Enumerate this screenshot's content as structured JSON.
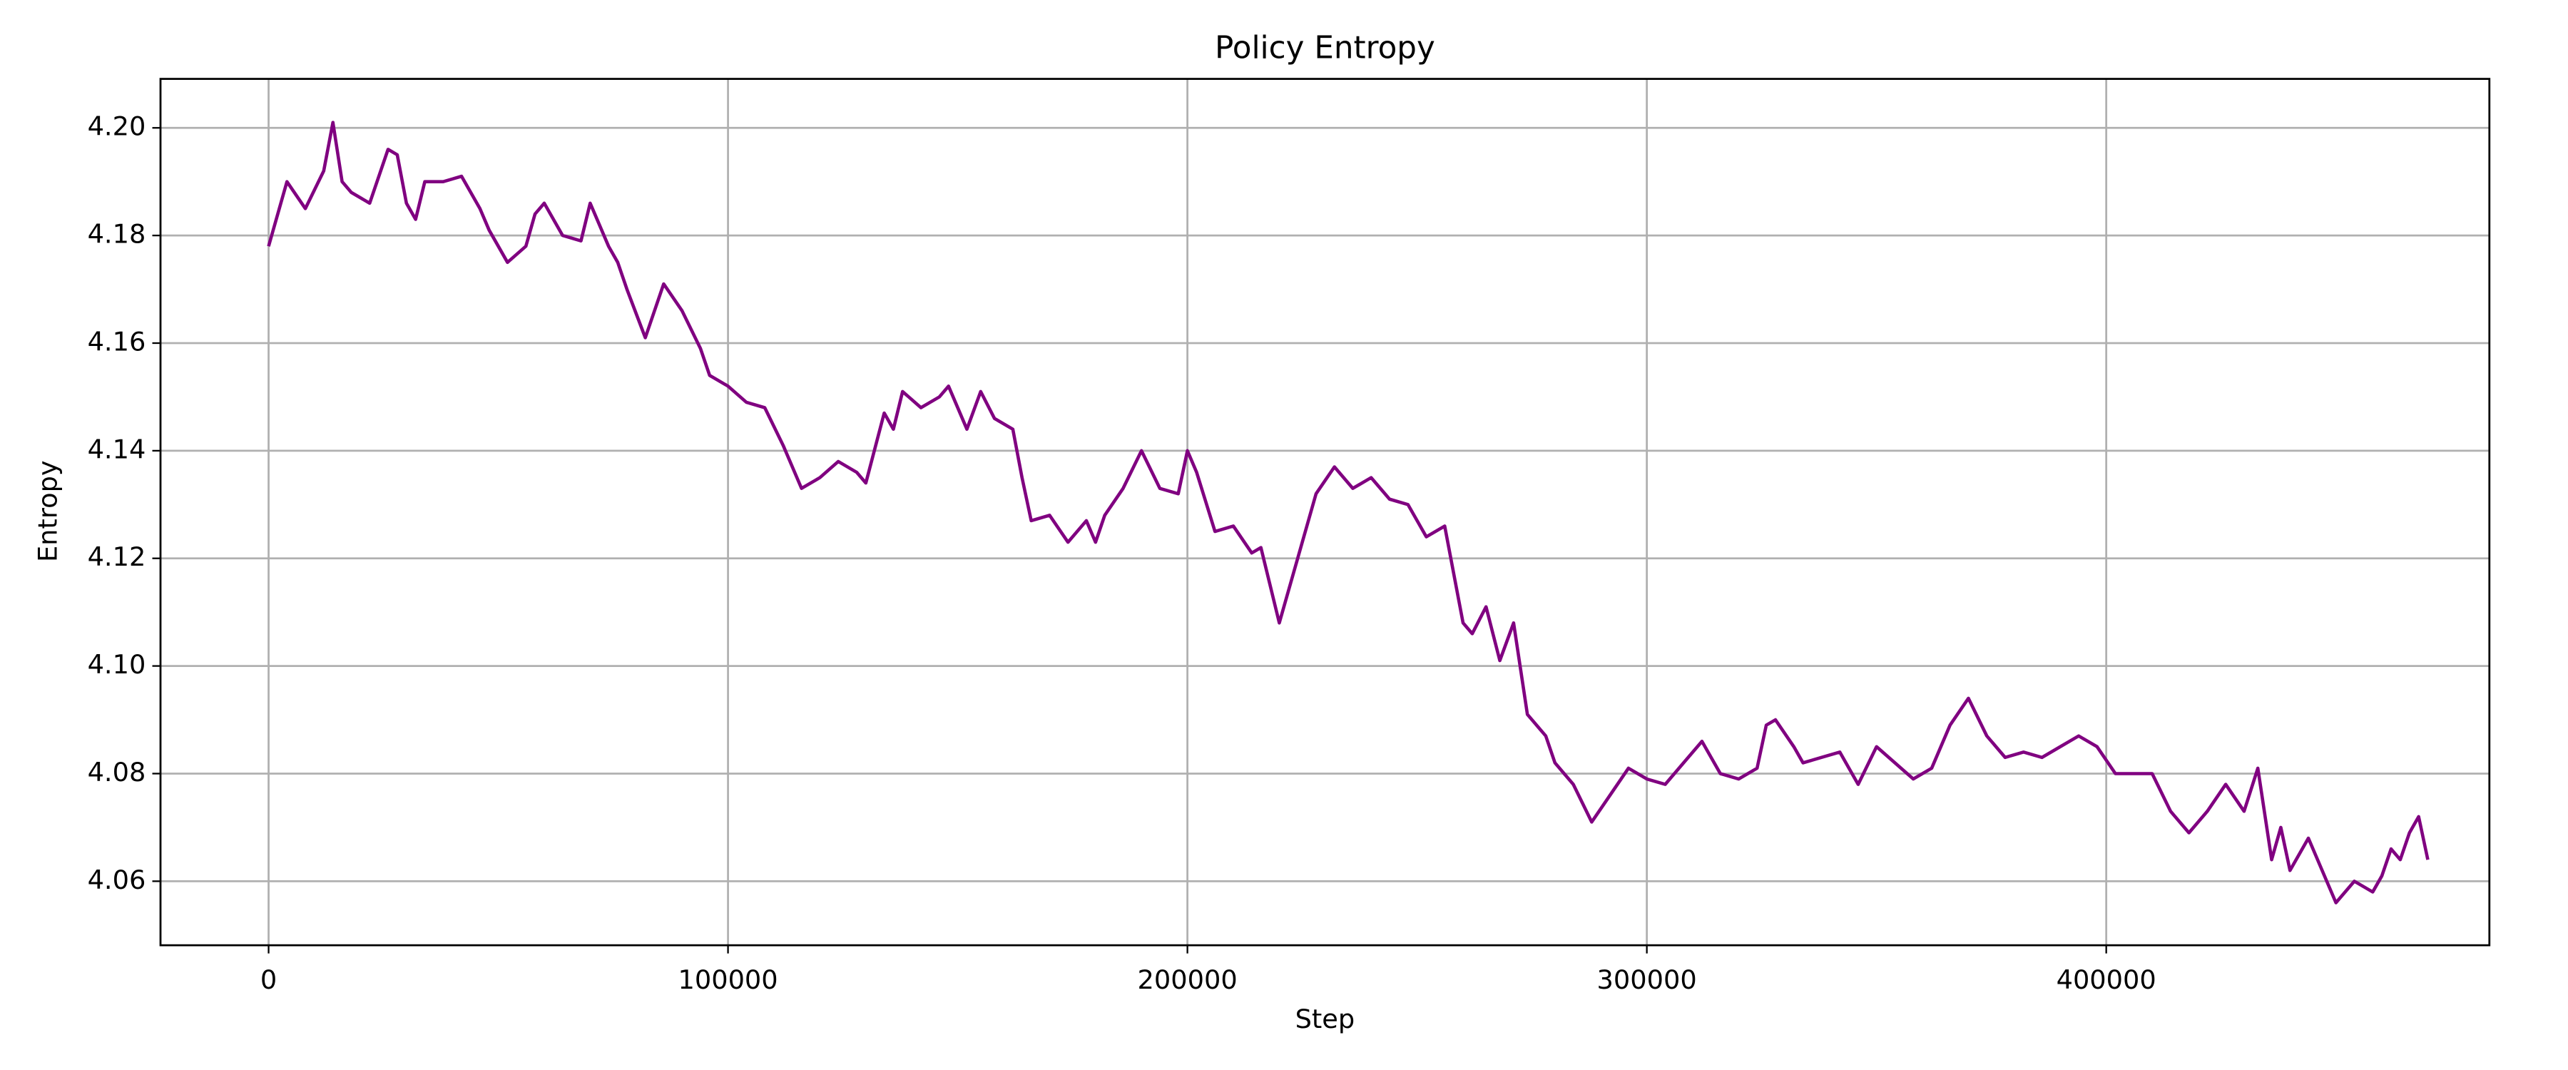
{
  "chart_data": {
    "type": "line",
    "title": "Policy Entropy",
    "x_label": "Step",
    "y_label": "Entropy",
    "x": [
      0,
      4000,
      8000,
      12000,
      14000,
      16000,
      18000,
      22000,
      26000,
      28000,
      30000,
      32000,
      34000,
      38000,
      42000,
      46000,
      48000,
      52000,
      56000,
      58000,
      60000,
      64000,
      68000,
      70000,
      74000,
      76000,
      78000,
      82000,
      86000,
      90000,
      94000,
      96000,
      100000,
      104000,
      108000,
      112000,
      116000,
      120000,
      124000,
      128000,
      130000,
      134000,
      136000,
      138000,
      142000,
      146000,
      148000,
      152000,
      155000,
      158000,
      162000,
      164000,
      166000,
      170000,
      174000,
      178000,
      180000,
      182000,
      186000,
      190000,
      194000,
      198000,
      200000,
      202000,
      206000,
      210000,
      214000,
      216000,
      220000,
      224000,
      228000,
      232000,
      236000,
      240000,
      244000,
      248000,
      252000,
      256000,
      260000,
      262000,
      265000,
      268000,
      271000,
      274000,
      276000,
      278000,
      280000,
      284000,
      288000,
      292000,
      296000,
      300000,
      304000,
      308000,
      312000,
      316000,
      320000,
      324000,
      326000,
      328000,
      332000,
      334000,
      338000,
      342000,
      346000,
      350000,
      354000,
      358000,
      362000,
      366000,
      370000,
      374000,
      378000,
      382000,
      386000,
      390000,
      394000,
      398000,
      402000,
      406000,
      410000,
      414000,
      418000,
      422000,
      426000,
      430000,
      433000,
      436000,
      438000,
      440000,
      444000,
      448000,
      450000,
      454000,
      458000,
      460000,
      462000,
      464000,
      466000,
      468000,
      470000
    ],
    "series": [
      {
        "name": "Entropy",
        "color": "#800080",
        "values": [
          4.178,
          4.19,
          4.185,
          4.192,
          4.201,
          4.19,
          4.188,
          4.186,
          4.196,
          4.195,
          4.186,
          4.183,
          4.19,
          4.19,
          4.191,
          4.185,
          4.181,
          4.175,
          4.178,
          4.184,
          4.186,
          4.18,
          4.179,
          4.186,
          4.178,
          4.175,
          4.17,
          4.161,
          4.171,
          4.166,
          4.159,
          4.154,
          4.152,
          4.149,
          4.148,
          4.141,
          4.133,
          4.135,
          4.138,
          4.136,
          4.134,
          4.147,
          4.144,
          4.151,
          4.148,
          4.15,
          4.152,
          4.144,
          4.151,
          4.146,
          4.144,
          4.135,
          4.127,
          4.128,
          4.123,
          4.127,
          4.123,
          4.128,
          4.133,
          4.14,
          4.133,
          4.132,
          4.14,
          4.136,
          4.125,
          4.126,
          4.121,
          4.122,
          4.108,
          4.12,
          4.132,
          4.137,
          4.133,
          4.135,
          4.131,
          4.13,
          4.124,
          4.126,
          4.108,
          4.106,
          4.111,
          4.101,
          4.108,
          4.091,
          4.089,
          4.087,
          4.082,
          4.078,
          4.071,
          4.076,
          4.081,
          4.079,
          4.078,
          4.082,
          4.086,
          4.08,
          4.079,
          4.081,
          4.089,
          4.09,
          4.085,
          4.082,
          4.083,
          4.084,
          4.078,
          4.085,
          4.082,
          4.079,
          4.081,
          4.089,
          4.094,
          4.087,
          4.083,
          4.084,
          4.083,
          4.085,
          4.087,
          4.085,
          4.08,
          4.08,
          4.08,
          4.073,
          4.069,
          4.073,
          4.078,
          4.073,
          4.081,
          4.064,
          4.07,
          4.062,
          4.068,
          4.06,
          4.056,
          4.06,
          4.058,
          4.061,
          4.066,
          4.064,
          4.069,
          4.072,
          4.064
        ]
      }
    ],
    "xlim": [
      -23530,
      483400
    ],
    "ylim": [
      4.0481,
      4.2091
    ],
    "xticks": [
      0,
      100000,
      200000,
      300000,
      400000
    ],
    "yticks": [
      {
        "value": 4.06,
        "label": "4.06"
      },
      {
        "value": 4.08,
        "label": "4.08"
      },
      {
        "value": 4.1,
        "label": "4.10"
      },
      {
        "value": 4.12,
        "label": "4.12"
      },
      {
        "value": 4.14,
        "label": "4.14"
      },
      {
        "value": 4.16,
        "label": "4.16"
      },
      {
        "value": 4.18,
        "label": "4.18"
      },
      {
        "value": 4.2,
        "label": "4.20"
      }
    ],
    "grid": true
  }
}
